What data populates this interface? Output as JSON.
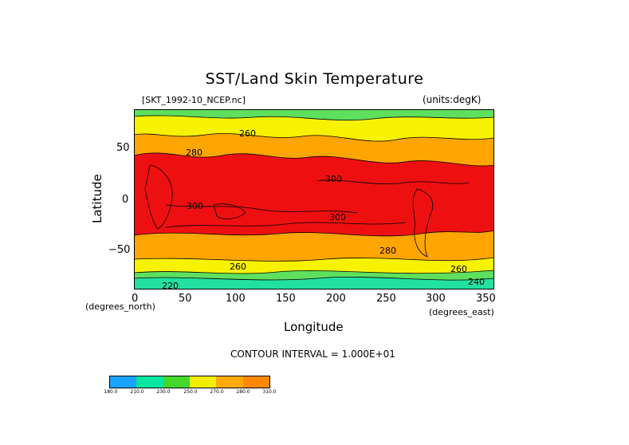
{
  "title": "SST/Land Skin Temperature",
  "file_label": "[SKT_1992-10_NCEP.nc]",
  "units_label": "(units:degK)",
  "y_axis": {
    "label": "Latitude",
    "unit_label": "(degrees_north)",
    "ticks": [
      "50",
      "0",
      "−50"
    ]
  },
  "x_axis": {
    "label": "Longitude",
    "unit_label": "(degrees_east)",
    "ticks": [
      "0",
      "50",
      "100",
      "150",
      "200",
      "250",
      "300",
      "350"
    ]
  },
  "contour_interval": "CONTOUR INTERVAL = 1.000E+01",
  "contour_labels": [
    "260",
    "280",
    "300",
    "300",
    "300",
    "280",
    "260",
    "260",
    "240",
    "220"
  ],
  "colorbar": {
    "labels": [
      "180.0",
      "210.0",
      "230.0",
      "250.0",
      "270.0",
      "280.0",
      "310.0"
    ],
    "colors": [
      "#1aa3ff",
      "#00e5a0",
      "#44d82a",
      "#f2ee00",
      "#ffaa00",
      "#ff7a00",
      "#ee1010"
    ]
  },
  "colors": {
    "red": "#ee1010",
    "orange": "#ffa500",
    "yellow": "#f7f200",
    "green": "#5ee05e",
    "teal": "#22e0a0",
    "blue": "#1aa3ff"
  }
}
